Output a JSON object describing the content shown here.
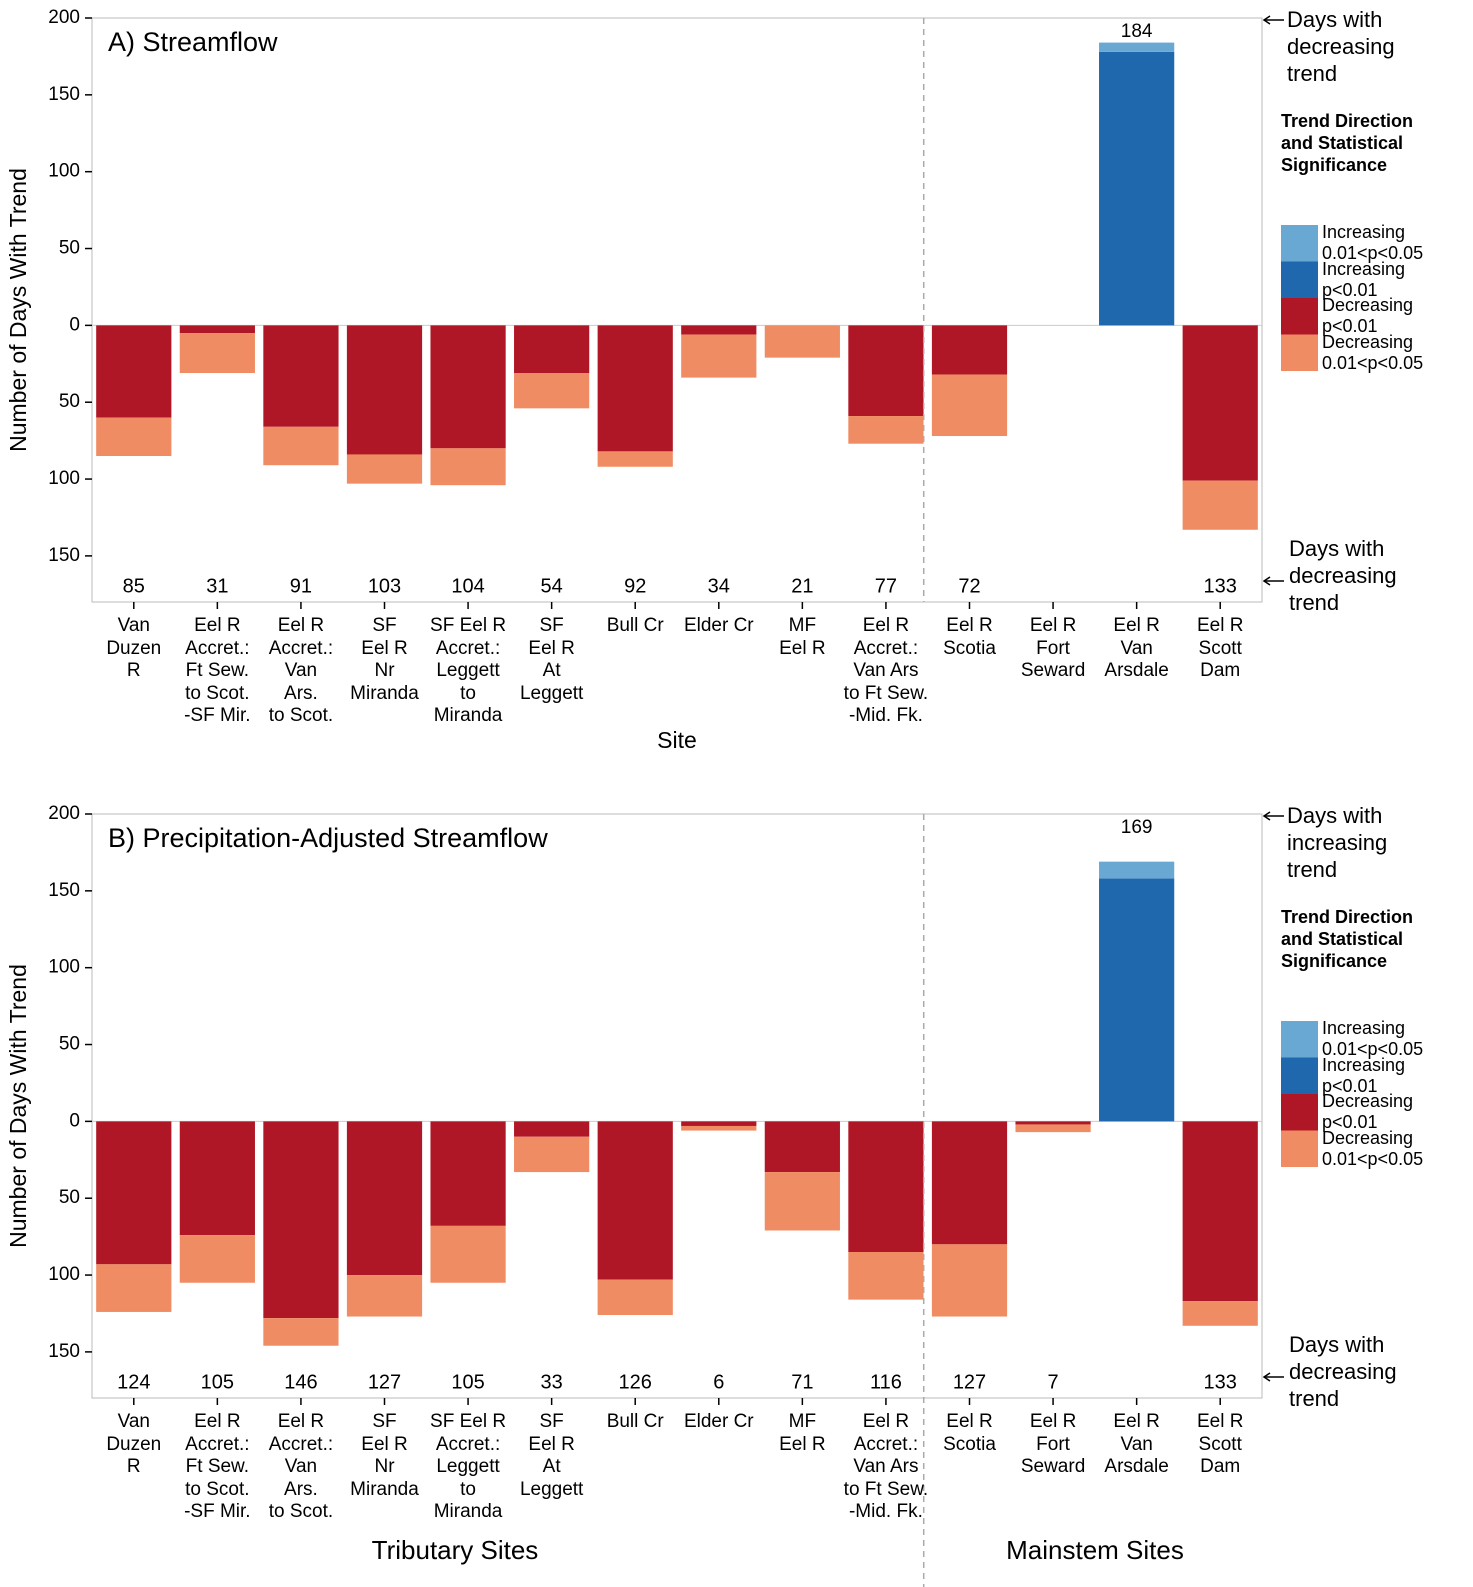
{
  "chart_data": [
    {
      "type": "stacked-bar",
      "title": "A) Streamflow",
      "y_label": "Number of Days With Trend",
      "x_label": "Site",
      "categories": [
        "Van\nDuzen\nR",
        "Eel R\nAccret.:\nFt Sew.\nto Scot.\n-SF Mir.",
        "Eel R\nAccret.:\nVan\nArs.\nto Scot.",
        "SF\nEel R\nNr\nMiranda",
        "SF Eel R\nAccret.:\nLeggett\nto\nMiranda",
        "SF\nEel R\nAt\nLeggett",
        "Bull Cr",
        "Elder Cr",
        "MF\nEel R",
        "Eel R\nAccret.:\nVan Ars\nto Ft Sew.\n-Mid. Fk.",
        "Eel R\nScotia",
        "Eel R\nFort\nSeward",
        "Eel R\nVan\nArsdale",
        "Eel R\nScott\nDam"
      ],
      "legend_title": "Trend Direction and Statistical Significance",
      "series": [
        {
          "name": "Increasing 0.01<p<0.05",
          "color": "#6aa8d4",
          "values": [
            0,
            0,
            0,
            0,
            0,
            0,
            0,
            0,
            0,
            0,
            0,
            0,
            6,
            0
          ]
        },
        {
          "name": "Increasing p<0.01",
          "color": "#1f68ad",
          "values": [
            0,
            0,
            0,
            0,
            0,
            0,
            0,
            0,
            0,
            0,
            0,
            0,
            178,
            0
          ]
        },
        {
          "name": "Decreasing p<0.01",
          "color": "#b01726",
          "values": [
            -60,
            -5,
            -66,
            -84,
            -80,
            -31,
            -82,
            -6,
            0,
            -59,
            -32,
            0,
            0,
            -101
          ]
        },
        {
          "name": "Decreasing 0.01<p<0.05",
          "color": "#ef8c63",
          "values": [
            -25,
            -26,
            -25,
            -19,
            -24,
            -23,
            -10,
            -28,
            -21,
            -18,
            -40,
            0,
            0,
            -32
          ]
        }
      ],
      "increasing_totals": [
        null,
        null,
        null,
        null,
        null,
        null,
        null,
        null,
        null,
        null,
        null,
        null,
        184,
        null
      ],
      "decreasing_totals": [
        85,
        31,
        91,
        103,
        104,
        54,
        92,
        34,
        21,
        77,
        72,
        null,
        null,
        133
      ],
      "annotations": [
        "Days with decreasing trend",
        "Days with decreasing trend"
      ],
      "ylim": [
        -180,
        200
      ],
      "yticks": [
        {
          "value": -150,
          "label": "150"
        },
        {
          "value": -100,
          "label": "100"
        },
        {
          "value": -50,
          "label": "50"
        },
        0,
        50,
        100,
        150,
        200
      ]
    },
    {
      "type": "stacked-bar",
      "title": "B) Precipitation-Adjusted Streamflow",
      "y_label": "Number of Days With Trend",
      "group_labels": [
        "Tributary Sites",
        "Mainstem Sites"
      ],
      "categories": [
        "Van\nDuzen\nR",
        "Eel R\nAccret.:\nFt Sew.\nto Scot.\n-SF Mir.",
        "Eel R\nAccret.:\nVan\nArs.\nto Scot.",
        "SF\nEel R\nNr\nMiranda",
        "SF Eel R\nAccret.:\nLeggett\nto\nMiranda",
        "SF\nEel R\nAt\nLeggett",
        "Bull Cr",
        "Elder Cr",
        "MF\nEel R",
        "Eel R\nAccret.:\nVan Ars\nto Ft Sew.\n-Mid. Fk.",
        "Eel R\nScotia",
        "Eel R\nFort\nSeward",
        "Eel R\nVan\nArsdale",
        "Eel R\nScott\nDam"
      ],
      "legend_title": "Trend Direction and Statistical Significance",
      "series": [
        {
          "name": "Increasing 0.01<p<0.05",
          "color": "#6aa8d4",
          "values": [
            0,
            0,
            0,
            0,
            0,
            0,
            0,
            0,
            0,
            0,
            0,
            0,
            11,
            0
          ]
        },
        {
          "name": "Increasing p<0.01",
          "color": "#1f68ad",
          "values": [
            0,
            0,
            0,
            0,
            0,
            0,
            0,
            0,
            0,
            0,
            0,
            0,
            158,
            0
          ]
        },
        {
          "name": "Decreasing p<0.01",
          "color": "#b01726",
          "values": [
            -93,
            -74,
            -128,
            -100,
            -68,
            -10,
            -103,
            -3,
            -33,
            -85,
            -80,
            -2,
            0,
            -117
          ]
        },
        {
          "name": "Decreasing 0.01<p<0.05",
          "color": "#ef8c63",
          "values": [
            -31,
            -31,
            -18,
            -27,
            -37,
            -23,
            -23,
            -3,
            -38,
            -31,
            -47,
            -5,
            0,
            -16
          ]
        }
      ],
      "increasing_totals": [
        null,
        null,
        null,
        null,
        null,
        null,
        null,
        null,
        null,
        null,
        null,
        null,
        169,
        null
      ],
      "decreasing_totals": [
        124,
        105,
        146,
        127,
        105,
        33,
        126,
        6,
        71,
        116,
        127,
        7,
        null,
        133
      ],
      "annotations": [
        "Days with increasing trend",
        "Days with decreasing trend"
      ],
      "ylim": [
        -180,
        200
      ],
      "yticks": [
        {
          "value": -150,
          "label": "150"
        },
        {
          "value": -100,
          "label": "100"
        },
        {
          "value": -50,
          "label": "50"
        },
        0,
        50,
        100,
        150,
        200
      ]
    }
  ]
}
